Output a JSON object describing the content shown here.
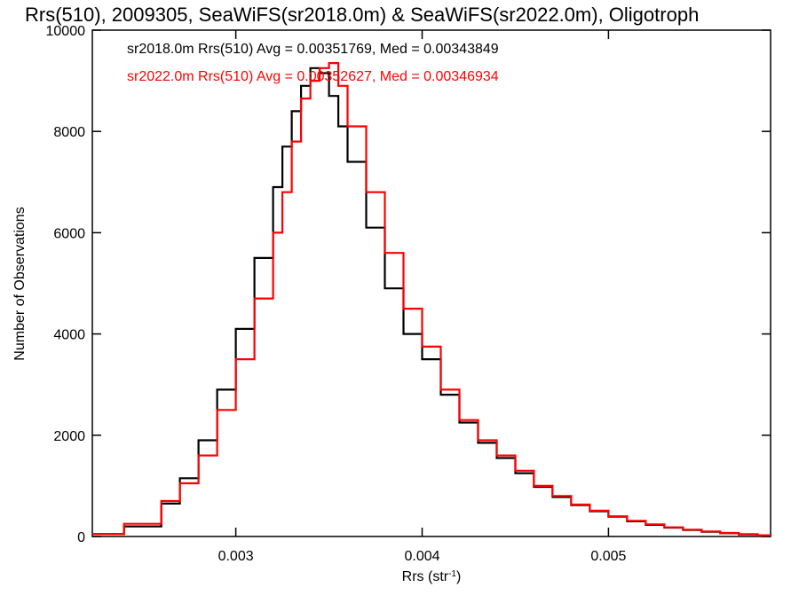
{
  "chart_data": {
    "type": "line",
    "title": "Rrs(510), 2009305, SeaWiFS(sr2018.0m) & SeaWiFS(sr2022.0m), Oligotroph",
    "xlabel": "Rrs (str",
    "xlabel_sup": "-1",
    "xlabel_close": ")",
    "ylabel": "Number of Observations",
    "xlim": [
      0.00223,
      0.00587
    ],
    "ylim": [
      0,
      10000
    ],
    "x_ticks": [
      0.003,
      0.004,
      0.005
    ],
    "x_tick_labels": [
      "0.003",
      "0.004",
      "0.005"
    ],
    "y_ticks": [
      0,
      2000,
      4000,
      6000,
      8000,
      10000
    ],
    "y_tick_labels": [
      "0",
      "2000",
      "4000",
      "6000",
      "8000",
      "10000"
    ],
    "grid": false,
    "legend_position": "top-left",
    "series": [
      {
        "name": "sr2018.0m",
        "color": "#000000",
        "stats_label": "sr2018.0m Rrs(510) Avg = 0.00351769, Med = 0.00343849",
        "x": [
          0.00223,
          0.0024,
          0.0026,
          0.0027,
          0.0028,
          0.0029,
          0.003,
          0.0031,
          0.0032,
          0.00325,
          0.0033,
          0.00335,
          0.0034,
          0.00345,
          0.0035,
          0.00355,
          0.0036,
          0.0037,
          0.0038,
          0.0039,
          0.004,
          0.0041,
          0.0042,
          0.0043,
          0.0044,
          0.0045,
          0.0046,
          0.0047,
          0.0048,
          0.0049,
          0.005,
          0.0051,
          0.0052,
          0.0053,
          0.0054,
          0.0055,
          0.0056,
          0.0057,
          0.0058,
          0.00587
        ],
        "y": [
          50,
          200,
          650,
          1150,
          1900,
          2900,
          4100,
          5500,
          6900,
          7700,
          8400,
          8900,
          9250,
          9150,
          8700,
          8100,
          7400,
          6100,
          4900,
          4000,
          3500,
          2800,
          2250,
          1850,
          1550,
          1250,
          980,
          780,
          620,
          500,
          390,
          300,
          230,
          175,
          130,
          95,
          65,
          40,
          25,
          20
        ]
      },
      {
        "name": "sr2022.0m",
        "color": "#ff0000",
        "stats_label": "sr2022.0m Rrs(510) Avg = 0.00352627, Med = 0.00346934",
        "x": [
          0.00223,
          0.0024,
          0.0026,
          0.0027,
          0.0028,
          0.0029,
          0.003,
          0.0031,
          0.0032,
          0.00325,
          0.0033,
          0.00335,
          0.0034,
          0.00345,
          0.0035,
          0.00355,
          0.0036,
          0.0037,
          0.0038,
          0.0039,
          0.004,
          0.0041,
          0.0042,
          0.0043,
          0.0044,
          0.0045,
          0.0046,
          0.0047,
          0.0048,
          0.0049,
          0.005,
          0.0051,
          0.0052,
          0.0053,
          0.0054,
          0.0055,
          0.0056,
          0.0057,
          0.0058,
          0.00587
        ],
        "y": [
          50,
          250,
          700,
          1050,
          1600,
          2500,
          3500,
          4700,
          6000,
          6800,
          7800,
          8650,
          9000,
          9250,
          9350,
          8900,
          8100,
          6800,
          5600,
          4500,
          3750,
          2900,
          2300,
          1900,
          1600,
          1300,
          1000,
          800,
          630,
          510,
          400,
          310,
          240,
          180,
          135,
          100,
          70,
          45,
          25,
          20
        ]
      }
    ]
  }
}
